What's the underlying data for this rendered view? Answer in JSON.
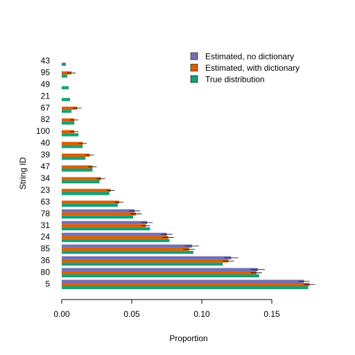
{
  "chart_data": {
    "type": "bar",
    "orientation": "horizontal",
    "xlabel": "Proportion",
    "ylabel": "String ID",
    "xlim": [
      0,
      0.18
    ],
    "xticks": [
      "0.00",
      "0.05",
      "0.10",
      "0.15"
    ],
    "legend_position": "top-right",
    "categories": [
      "5",
      "80",
      "36",
      "85",
      "24",
      "31",
      "78",
      "63",
      "23",
      "34",
      "47",
      "39",
      "40",
      "100",
      "82",
      "67",
      "21",
      "49",
      "95",
      "43"
    ],
    "series": [
      {
        "name": "Estimated, no dictionary",
        "color": "#7570b3",
        "values": [
          0.173,
          0.14,
          0.121,
          0.093,
          0.075,
          0.061,
          0.052,
          0,
          0,
          0,
          0,
          0,
          0,
          0,
          0,
          0,
          0,
          0,
          0,
          0
        ],
        "err": [
          0.004,
          0.005,
          0.005,
          0.005,
          0.004,
          0.004,
          0.004,
          0,
          0,
          0,
          0,
          0,
          0,
          0,
          0,
          0,
          0,
          0,
          0,
          0
        ]
      },
      {
        "name": "Estimated, with dictionary",
        "color": "#d95f02",
        "values": [
          0.177,
          0.139,
          0.119,
          0.091,
          0.076,
          0.06,
          0.053,
          0.041,
          0.035,
          0.028,
          0.022,
          0.02,
          0.015,
          0.009,
          0.009,
          0.011,
          0,
          0,
          0.007,
          0
        ],
        "err": [
          0.004,
          0.004,
          0.004,
          0.004,
          0.004,
          0.003,
          0.004,
          0.003,
          0.003,
          0.003,
          0.003,
          0.003,
          0.003,
          0.003,
          0.003,
          0.003,
          0,
          0,
          0.003,
          0
        ]
      },
      {
        "name": "True distribution",
        "color": "#1b9e77",
        "values": [
          0.176,
          0.141,
          0.115,
          0.094,
          0.077,
          0.063,
          0.051,
          0.04,
          0.034,
          0.027,
          0.022,
          0.017,
          0.015,
          0.012,
          0.009,
          0.007,
          0.006,
          0.005,
          0.004,
          0.003
        ]
      }
    ]
  }
}
